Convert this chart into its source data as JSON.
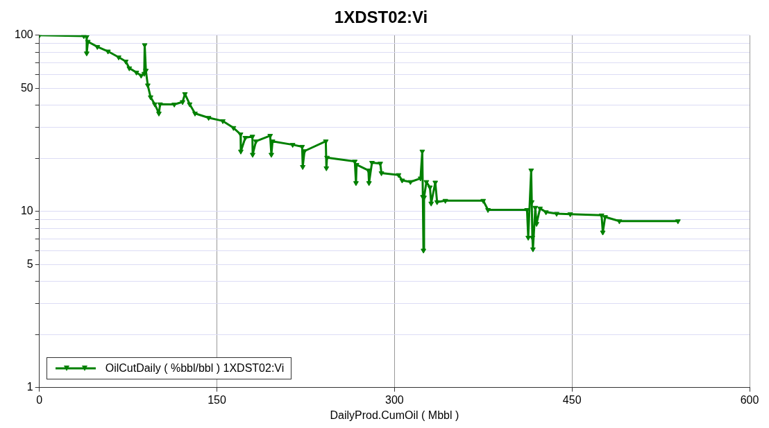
{
  "chart_data": {
    "type": "line",
    "title": "1XDST02:Vi",
    "xlabel": "DailyProd.CumOil ( Mbbl )",
    "xlim": [
      0,
      600
    ],
    "xticks": [
      0,
      150,
      300,
      450,
      600
    ],
    "ylim": [
      1,
      100
    ],
    "log": "y",
    "yticks": [
      1,
      {
        "value": 2,
        "label": null
      },
      {
        "value": 3,
        "label": null
      },
      {
        "value": 4,
        "label": null
      },
      5,
      {
        "value": 6,
        "label": null
      },
      {
        "value": 7,
        "label": null
      },
      {
        "value": 8,
        "label": null
      },
      {
        "value": 9,
        "label": null
      },
      10,
      {
        "value": 20,
        "label": null
      },
      {
        "value": 30,
        "label": null
      },
      {
        "value": 40,
        "label": null
      },
      50,
      {
        "value": 60,
        "label": null
      },
      {
        "value": 70,
        "label": null
      },
      {
        "value": 80,
        "label": null
      },
      {
        "value": 90,
        "label": null
      },
      100
    ],
    "grid": true,
    "legend": "bottom left",
    "marker": "triangle",
    "line_style": "solid",
    "series": [
      {
        "name": "OilCutDaily ( %bbl/bbl ) 1XDST02:Vi",
        "color": "#008000",
        "x": [
          0,
          37.6,
          40,
          40,
          41,
          49,
          58,
          67,
          73,
          76,
          82,
          86,
          88.6,
          89,
          90,
          91.6,
          94,
          97.5,
          101,
          102,
          114,
          121,
          123,
          127,
          131.5,
          143,
          155,
          164,
          170,
          170.2,
          174,
          180,
          180.2,
          183,
          195,
          196,
          197,
          214,
          222,
          222.5,
          224,
          242,
          242.5,
          243,
          266.5,
          267.5,
          268,
          278,
          278.5,
          281,
          288,
          289,
          303.5,
          306.5,
          313.5,
          322,
          323.5,
          324,
          324.5,
          325,
          327,
          330,
          331,
          334.5,
          336,
          343,
          375,
          379,
          412,
          413,
          415.5,
          416,
          416.5,
          417,
          419,
          420,
          423,
          428,
          437,
          448.5,
          475,
          476,
          478,
          490,
          539.5
        ],
        "values": [
          100,
          99,
          98,
          79,
          92,
          86,
          81,
          75,
          71,
          65,
          61.5,
          59,
          60.5,
          88,
          63,
          52,
          44.5,
          40.6,
          36,
          40.6,
          40.5,
          41.8,
          46.4,
          40.6,
          36,
          34,
          32.6,
          29.8,
          27.4,
          21.9,
          26.2,
          26.6,
          21,
          25,
          26.9,
          21,
          25,
          23.9,
          23.3,
          17.9,
          22,
          25,
          17.6,
          20.2,
          19.2,
          14.5,
          18.4,
          17.1,
          14.5,
          18.9,
          18.7,
          16.5,
          16.1,
          15,
          14.7,
          15.4,
          21.9,
          12.1,
          6,
          12,
          14.7,
          13.7,
          11.1,
          14.6,
          11.3,
          11.5,
          11.5,
          10.2,
          10.2,
          7.1,
          17.1,
          11.3,
          7.1,
          6.1,
          10.5,
          8.5,
          10.4,
          9.9,
          9.7,
          9.65,
          9.5,
          7.6,
          9.3,
          8.8,
          8.8
        ]
      }
    ]
  }
}
